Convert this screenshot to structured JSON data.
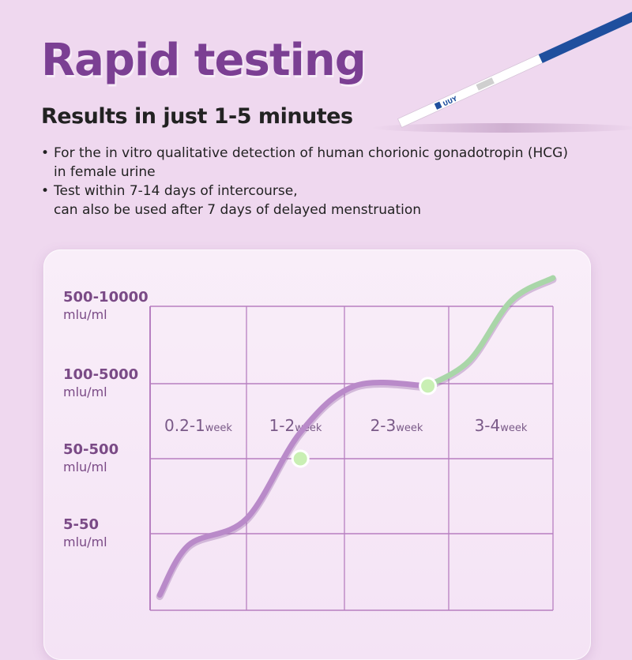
{
  "header": {
    "title": "Rapid testing",
    "subtitle": "Results in just 1-5 minutes"
  },
  "bullets": [
    {
      "marker": "•",
      "lines": [
        "For the in vitro qualitative detection of human chorionic gonadotropin (HCG)",
        "in female urine"
      ]
    },
    {
      "marker": "•",
      "lines": [
        "Test within 7-14 days of intercourse,",
        "can also be used after 7 days of delayed menstruation"
      ]
    }
  ],
  "test_strip": {
    "label": "UUY",
    "colors": {
      "handle": "#1f4f9e",
      "body": "#ffffff",
      "window": "#cfcfcf"
    }
  },
  "colors": {
    "title": "#7b3f93",
    "grid": "#b77fc0",
    "curve_primary": "#b98ac9",
    "curve_secondary": "#a9d6a8",
    "marker": "#c9efb4",
    "label": "#7a4a86"
  },
  "chart_data": {
    "type": "line",
    "title": "",
    "xlabel": "",
    "ylabel": "",
    "unit": "mlu/ml",
    "y_categories": [
      {
        "range": "5-50",
        "unit": "mlu/ml"
      },
      {
        "range": "50-500",
        "unit": "mlu/ml"
      },
      {
        "range": "100-5000",
        "unit": "mlu/ml"
      },
      {
        "range": "500-10000",
        "unit": "mlu/ml"
      }
    ],
    "x_categories": [
      {
        "range": "0.2-1",
        "unit": "week"
      },
      {
        "range": "1-2",
        "unit": "week"
      },
      {
        "range": "2-3",
        "unit": "week"
      },
      {
        "range": "3-4",
        "unit": "week"
      }
    ],
    "xlim": [
      0,
      4
    ],
    "ylim": [
      -1,
      4
    ],
    "grid": true,
    "series": [
      {
        "color": "#b98ac9",
        "points": [
          [
            0.1,
            -0.8
          ],
          [
            0.4,
            -0.15
          ],
          [
            1.0,
            0.2
          ],
          [
            1.55,
            1.35
          ],
          [
            2.1,
            1.97
          ],
          [
            2.8,
            1.97
          ]
        ]
      },
      {
        "color": "#a9d6a8",
        "points": [
          [
            2.8,
            1.97
          ],
          [
            3.2,
            2.3
          ],
          [
            3.6,
            3.2
          ],
          [
            4.0,
            4.0
          ]
        ]
      }
    ],
    "markers": [
      [
        1.55,
        1.0
      ],
      [
        2.8,
        1.97
      ]
    ]
  }
}
